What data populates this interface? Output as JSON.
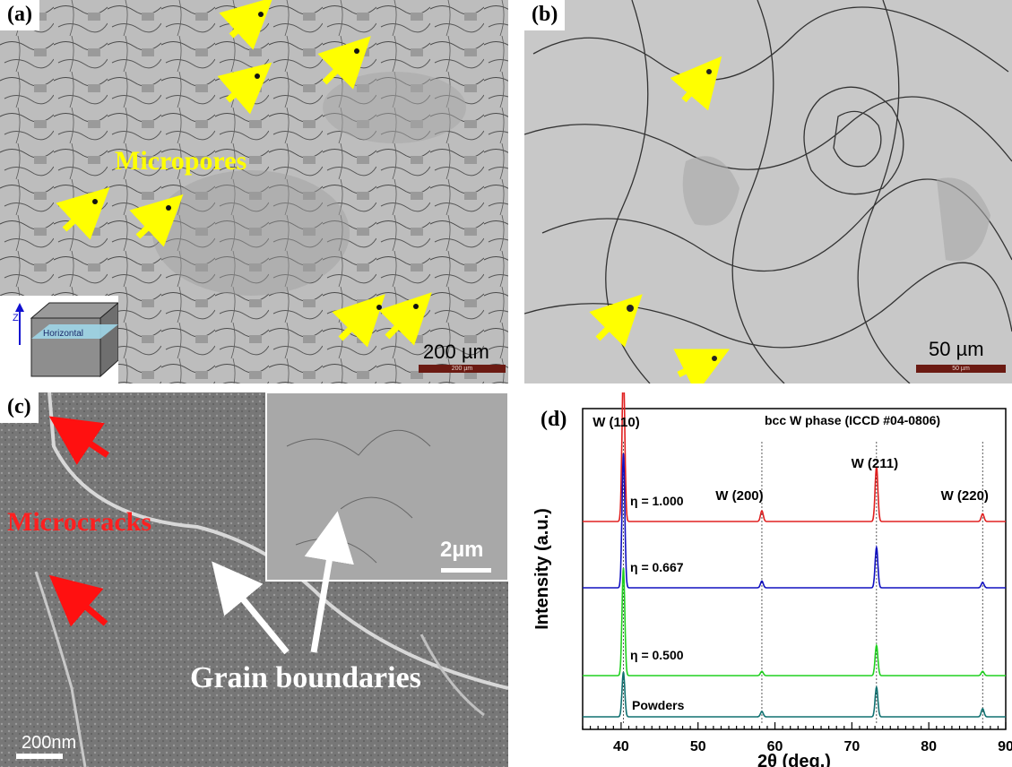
{
  "panels": {
    "a": {
      "tag": "(a)",
      "label": "Micropores",
      "scalebar": "200 µm",
      "scalebar_small": "200 µm",
      "axis": "Z",
      "plane": "Horizontal"
    },
    "b": {
      "tag": "(b)",
      "scalebar": "50 µm",
      "scalebar_small": "50 µm"
    },
    "c": {
      "tag": "(c)",
      "label_cracks": "Microcracks",
      "label_gb": "Grain boundaries",
      "inset_scalebar": "2µm",
      "scalebar": "200nm"
    },
    "d": {
      "tag": "(d)"
    }
  },
  "chart_data": {
    "type": "line",
    "title": "bcc  W phase (ICCD #04-0806)",
    "xlabel": "2θ (deg.)",
    "ylabel": "Intensity (a.u.)",
    "xlim": [
      35,
      90
    ],
    "xticks": [
      "40",
      "50",
      "60",
      "70",
      "80",
      "90"
    ],
    "peaks": [
      {
        "label": "W (110)",
        "x": 40.3
      },
      {
        "label": "W (200)",
        "x": 58.3
      },
      {
        "label": "W (211)",
        "x": 73.2
      },
      {
        "label": "W (220)",
        "x": 87.0
      }
    ],
    "series": [
      {
        "name": "η = 1.000",
        "color": "#e02020",
        "offset": 3.0,
        "heights": [
          1.0,
          0.07,
          0.36,
          0.05
        ]
      },
      {
        "name": "η = 0.667",
        "color": "#1010c0",
        "offset": 2.0,
        "heights": [
          1.0,
          0.05,
          0.3,
          0.04
        ]
      },
      {
        "name": "η = 0.500",
        "color": "#20d020",
        "offset": 1.0,
        "heights": [
          1.0,
          0.04,
          0.28,
          0.04
        ]
      },
      {
        "name": "Powders",
        "color": "#107070",
        "offset": 0.0,
        "heights": [
          0.5,
          0.06,
          0.33,
          0.09
        ]
      }
    ]
  }
}
